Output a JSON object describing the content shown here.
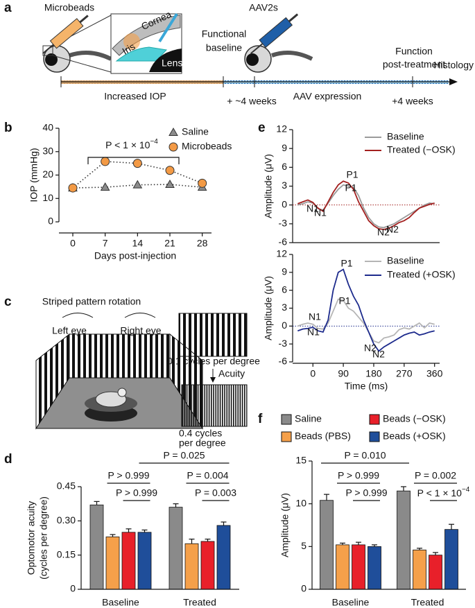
{
  "panel_labels": [
    "a",
    "b",
    "c",
    "d",
    "e",
    "f"
  ],
  "panel_a": {
    "microbeads": "Microbeads",
    "cornea": "Cornea",
    "iris": "Iris",
    "lens": "Lens",
    "functional_baseline": [
      "Functional",
      "baseline"
    ],
    "aav": "AAV2s",
    "function_post": [
      "Function",
      "post-treatment"
    ],
    "histology": "Histology",
    "increased_iop": "Increased IOP",
    "approx_4_weeks": "+ ~4 weeks",
    "aav_expression": "AAV expression",
    "plus_4_weeks": "+4 weeks"
  },
  "panel_c": {
    "title": "Striped pattern rotation",
    "left_eye": "Left eye",
    "right_eye": "Right eye",
    "low_freq": "0.1 cycles per degree",
    "acuity": "Acuity",
    "high_freq": [
      "0.4 cycles",
      "per degree"
    ]
  },
  "chart_data": [
    {
      "type": "line",
      "ylabel": [
        "IOP (mmHg)"
      ],
      "xlabel": "Days post-injection",
      "x": [
        0,
        7,
        14,
        21,
        28
      ],
      "xlim": [
        -3,
        30
      ],
      "xticks": [
        0,
        7,
        14,
        21,
        28
      ],
      "ylim": [
        0,
        40
      ],
      "yticks": [
        0,
        10,
        20,
        30,
        40
      ],
      "line_style": "dotted",
      "series": [
        {
          "name": "Saline",
          "color": "#8c8c8c",
          "marker": "triangle",
          "values": [
            14.5,
            14.8,
            15.8,
            16.0,
            14.8
          ],
          "errors": [
            0.6,
            0.6,
            1.2,
            0.6,
            0.6
          ]
        },
        {
          "name": "Microbeads",
          "color": "#f39a45",
          "marker": "circle",
          "values": [
            14.5,
            25.8,
            25.0,
            22.0,
            16.5
          ],
          "errors": [
            0.6,
            1.2,
            1.2,
            0.6,
            0.6
          ]
        }
      ],
      "annotations": [
        {
          "text": "P < 1 × 10",
          "sup": "−4"
        }
      ]
    },
    {
      "type": "line",
      "ylabel": [
        "Amplitude (μV)"
      ],
      "x": [
        -45,
        -30,
        -15,
        0,
        15,
        30,
        45,
        60,
        75,
        90,
        105,
        120,
        135,
        150,
        165,
        180,
        195,
        210,
        225,
        240,
        255,
        270,
        285,
        300,
        315,
        330,
        345,
        360
      ],
      "xlim": [
        -60,
        375
      ],
      "ylim": [
        -6,
        12
      ],
      "yticks": [
        -6,
        -3,
        0,
        3,
        6,
        9,
        12
      ],
      "zero_line": true,
      "series": [
        {
          "name": "Baseline",
          "color": "#9a9a9a",
          "values": [
            0,
            0.2,
            0.5,
            0.3,
            -0.6,
            -0.8,
            0.3,
            1.5,
            2.5,
            3.2,
            3.0,
            2.8,
            1.5,
            -0.5,
            -2.0,
            -3.0,
            -3.5,
            -3.6,
            -3.3,
            -3.0,
            -2.5,
            -2.0,
            -1.5,
            -1.0,
            -0.5,
            0,
            0.3,
            0.2
          ]
        },
        {
          "name": "Treated (−OSK)",
          "color": "#a3201f",
          "values": [
            0.2,
            0.5,
            0.8,
            0.4,
            -0.5,
            -1.0,
            0.5,
            2.0,
            3.2,
            3.8,
            3.5,
            2.5,
            0.5,
            -1.0,
            -2.5,
            -3.3,
            -3.8,
            -3.9,
            -3.7,
            -3.3,
            -2.8,
            -2.5,
            -2.0,
            -1.2,
            -0.5,
            -0.2,
            0.1,
            0.3
          ]
        }
      ],
      "annotations": [
        "P1",
        "P1",
        "N1",
        "N1",
        "N2",
        "N2"
      ]
    },
    {
      "type": "line",
      "ylabel": [
        "Amplitude (μV)"
      ],
      "xlabel": "Time (ms)",
      "x": [
        -45,
        -30,
        -15,
        0,
        15,
        30,
        45,
        60,
        75,
        90,
        105,
        120,
        135,
        150,
        165,
        180,
        195,
        210,
        225,
        240,
        255,
        270,
        285,
        300,
        315,
        330,
        345,
        360
      ],
      "xlim": [
        -60,
        375
      ],
      "xticks": [
        0,
        90,
        180,
        270,
        360
      ],
      "ylim": [
        -6,
        12
      ],
      "yticks": [
        -6,
        -3,
        0,
        3,
        6,
        9,
        12
      ],
      "zero_line": true,
      "series": [
        {
          "name": "Baseline",
          "color": "#b5b5b5",
          "values": [
            0,
            0.3,
            0.5,
            0.3,
            -0.4,
            -0.5,
            0.5,
            2.5,
            4.5,
            4.3,
            3.0,
            2.5,
            1.5,
            0.5,
            -1.0,
            -2.5,
            -2.8,
            -2.0,
            -1.8,
            -1.5,
            -0.6,
            -0.3,
            -0.5,
            0,
            0.5,
            -0.3,
            0.5,
            0.3
          ]
        },
        {
          "name": "Treated (+OSK)",
          "color": "#1c2a8c",
          "values": [
            -0.8,
            -0.5,
            -0.4,
            -0.2,
            -0.8,
            -1.0,
            1.0,
            6.0,
            9.0,
            9.5,
            7.0,
            5.0,
            3.5,
            1.0,
            -1.0,
            -3.0,
            -4.2,
            -3.5,
            -3.0,
            -2.5,
            -2.0,
            -1.5,
            -1.2,
            -1.0,
            -1.5,
            -1.3,
            -1.0,
            -0.8
          ]
        }
      ],
      "annotations": [
        "P1",
        "P1",
        "N1",
        "N1",
        "N2",
        "N2"
      ]
    },
    {
      "type": "bar",
      "ylabel": [
        "Optomotor acuity",
        "(cycles per degree)"
      ],
      "categories": [
        "Baseline",
        "Treated"
      ],
      "ylim": [
        0,
        0.45
      ],
      "yticks": [
        0,
        0.15,
        {
          "value": 0.3,
          "label": "0.30"
        },
        0.45
      ],
      "series": [
        {
          "color": "#8a8a8a",
          "values": [
            0.37,
            0.36
          ],
          "errors": [
            0.015,
            0.015
          ]
        },
        {
          "color": "#f5a04a",
          "values": [
            0.23,
            0.2
          ],
          "errors": [
            0.01,
            0.02
          ]
        },
        {
          "color": "#e8202a",
          "values": [
            0.25,
            0.21
          ],
          "errors": [
            0.015,
            0.01
          ]
        },
        {
          "color": "#1f4e9a",
          "values": [
            0.25,
            0.28
          ],
          "errors": [
            0.01,
            0.015
          ]
        }
      ],
      "annotations": [
        "P = 0.025",
        "P > 0.999",
        "P > 0.999",
        "P = 0.004",
        "P = 0.003"
      ]
    },
    {
      "type": "bar",
      "ylabel": [
        "Amplitude (μV)"
      ],
      "categories": [
        "Baseline",
        "Treated"
      ],
      "ylim": [
        0,
        15
      ],
      "yticks": [
        0,
        5,
        10,
        15
      ],
      "series": [
        {
          "name": "Saline",
          "color": "#8a8a8a",
          "values": [
            10.4,
            11.5
          ],
          "errors": [
            0.7,
            0.5
          ]
        },
        {
          "name": "Beads (PBS)",
          "color": "#f5a04a",
          "values": [
            5.2,
            4.6
          ],
          "errors": [
            0.2,
            0.2
          ]
        },
        {
          "name": "Beads (−OSK)",
          "color": "#e8202a",
          "values": [
            5.2,
            4.0
          ],
          "errors": [
            0.3,
            0.3
          ]
        },
        {
          "name": "Beads (+OSK)",
          "color": "#1f4e9a",
          "values": [
            5.0,
            7.0
          ],
          "errors": [
            0.2,
            0.6
          ]
        }
      ],
      "annotations": [
        "P = 0.010",
        "P > 0.999",
        "P > 0.999",
        "P = 0.002",
        {
          "text": "P < 1 × 10",
          "sup": "−4"
        }
      ]
    }
  ]
}
